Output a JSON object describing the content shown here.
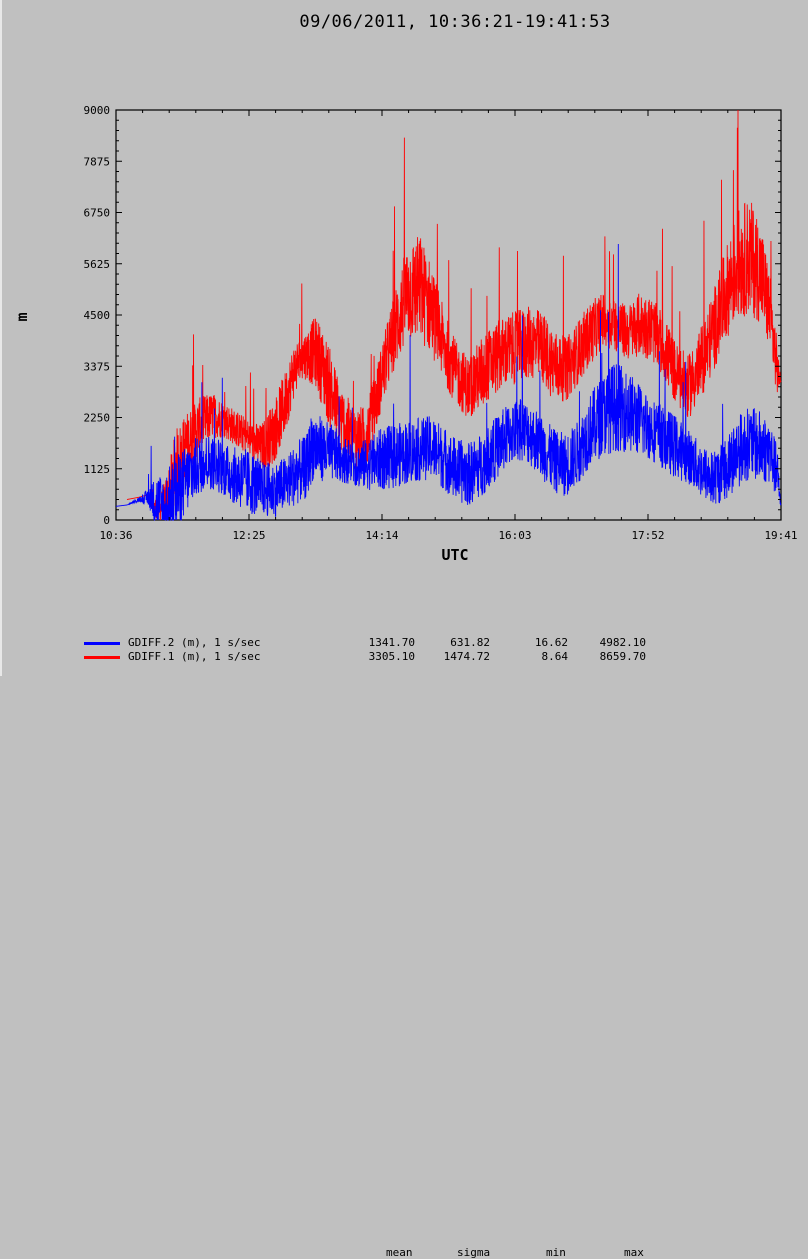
{
  "chart_data": {
    "type": "line",
    "title": "09/06/2011, 10:36:21-19:41:53",
    "xlabel": "UTC",
    "ylabel": "m",
    "x_ticks": [
      "10:36",
      "12:25",
      "14:14",
      "16:03",
      "17:52",
      "19:41"
    ],
    "x_tick_minutes": [
      636,
      745,
      854,
      963,
      1072,
      1181
    ],
    "xlim_minutes": [
      636,
      1181
    ],
    "y_ticks": [
      "0",
      "1125",
      "2250",
      "3375",
      "4500",
      "5625",
      "6750",
      "7875",
      "9000"
    ],
    "ylim": [
      0,
      9000
    ],
    "grid": false,
    "legend_location": "bottom-left",
    "series": [
      {
        "name": "GDIFF.2 (m), 1 s/sec",
        "color": "#0000ff",
        "x_minutes": [
          636,
          645,
          655,
          663,
          670,
          676,
          682,
          690,
          700,
          710,
          720,
          730,
          740,
          748,
          755,
          765,
          775,
          785,
          792,
          797,
          805,
          815,
          825,
          835,
          845,
          855,
          865,
          875,
          885,
          895,
          905,
          915,
          925,
          935,
          945,
          955,
          965,
          975,
          985,
          995,
          1005,
          1015,
          1025,
          1035,
          1045,
          1055,
          1065,
          1075,
          1085,
          1095,
          1105,
          1115,
          1125,
          1135,
          1145,
          1155,
          1165,
          1172,
          1178,
          1181
        ],
        "center": [
          300,
          330,
          450,
          500,
          350,
          200,
          400,
          750,
          1100,
          1300,
          1200,
          1000,
          900,
          800,
          700,
          650,
          800,
          1050,
          1150,
          1650,
          1550,
          1450,
          1300,
          1200,
          1250,
          1350,
          1400,
          1500,
          1550,
          1600,
          1350,
          1100,
          1000,
          1200,
          1500,
          1800,
          2000,
          1900,
          1600,
          1300,
          1200,
          1500,
          2000,
          2300,
          2500,
          2400,
          2200,
          2000,
          1800,
          1600,
          1400,
          1100,
          900,
          1100,
          1500,
          1700,
          1600,
          1500,
          1000,
          300
        ],
        "spread": [
          0,
          0,
          50,
          200,
          700,
          800,
          900,
          800,
          700,
          600,
          600,
          600,
          700,
          700,
          600,
          600,
          600,
          700,
          700,
          800,
          700,
          600,
          500,
          500,
          600,
          700,
          700,
          700,
          700,
          700,
          700,
          700,
          700,
          700,
          700,
          700,
          700,
          700,
          700,
          700,
          700,
          700,
          800,
          900,
          1000,
          900,
          800,
          700,
          700,
          700,
          600,
          600,
          600,
          700,
          800,
          800,
          800,
          700,
          600,
          0
        ],
        "mean": "1341.70",
        "sigma": "631.82",
        "min": "16.62",
        "max": "4982.10"
      },
      {
        "name": "GDIFF.1 (m), 1 s/sec",
        "color": "#ff0000",
        "x_minutes": [
          645,
          655,
          663,
          667,
          672,
          678,
          685,
          695,
          705,
          715,
          725,
          735,
          745,
          755,
          765,
          775,
          782,
          790,
          800,
          810,
          820,
          830,
          840,
          848,
          855,
          865,
          875,
          885,
          895,
          905,
          915,
          925,
          935,
          945,
          955,
          965,
          975,
          985,
          995,
          1005,
          1015,
          1025,
          1035,
          1045,
          1055,
          1065,
          1075,
          1085,
          1095,
          1105,
          1115,
          1125,
          1135,
          1145,
          1155,
          1165,
          1172,
          1178,
          1181
        ],
        "center": [
          450,
          500,
          560,
          300,
          250,
          500,
          1200,
          1700,
          2100,
          2300,
          2200,
          2000,
          1800,
          1600,
          1900,
          2600,
          3300,
          3600,
          3700,
          3000,
          2200,
          1800,
          1800,
          2500,
          3300,
          4200,
          5000,
          5100,
          4600,
          3800,
          3200,
          2900,
          3200,
          3500,
          3700,
          3800,
          3900,
          3800,
          3400,
          3300,
          3700,
          4100,
          4400,
          4300,
          4100,
          4300,
          4200,
          3800,
          3200,
          2900,
          3400,
          4100,
          4900,
          5600,
          5800,
          5400,
          4500,
          3300,
          3000
        ],
        "spread": [
          0,
          0,
          0,
          200,
          300,
          500,
          800,
          700,
          600,
          500,
          400,
          400,
          400,
          500,
          700,
          700,
          600,
          500,
          800,
          900,
          800,
          700,
          700,
          700,
          700,
          900,
          1100,
          1200,
          1000,
          800,
          700,
          700,
          800,
          800,
          800,
          800,
          800,
          800,
          800,
          700,
          700,
          700,
          600,
          600,
          600,
          700,
          700,
          700,
          700,
          700,
          800,
          900,
          1000,
          1200,
          1300,
          1100,
          900,
          600,
          0
        ],
        "mean": "3305.10",
        "sigma": "1474.72",
        "min": "8.64",
        "max": "8659.70"
      }
    ]
  },
  "stats_headers": [
    "mean",
    "sigma",
    "min",
    "max"
  ]
}
